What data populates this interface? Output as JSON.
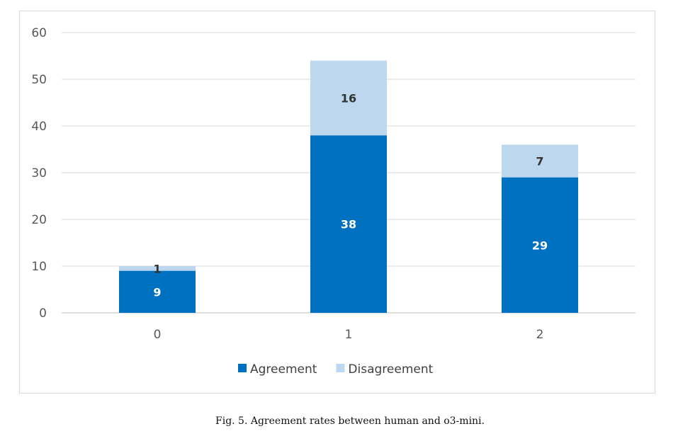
{
  "caption": "Fig. 5.  Agreement rates between human and o3-mini.",
  "chart_data": {
    "type": "bar",
    "stacked": true,
    "categories": [
      "0",
      "1",
      "2"
    ],
    "series": [
      {
        "name": "Agreement",
        "values": [
          9,
          38,
          29
        ],
        "color": "#0070c0",
        "label_color": "#ffffff"
      },
      {
        "name": "Disagreement",
        "values": [
          1,
          16,
          7
        ],
        "color": "#bdd7ee",
        "label_color": "#333333"
      }
    ],
    "y_ticks": [
      "0",
      "10",
      "20",
      "30",
      "40",
      "50",
      "60"
    ],
    "ylim": [
      0,
      60
    ],
    "grid": true,
    "legend_position": "bottom"
  }
}
